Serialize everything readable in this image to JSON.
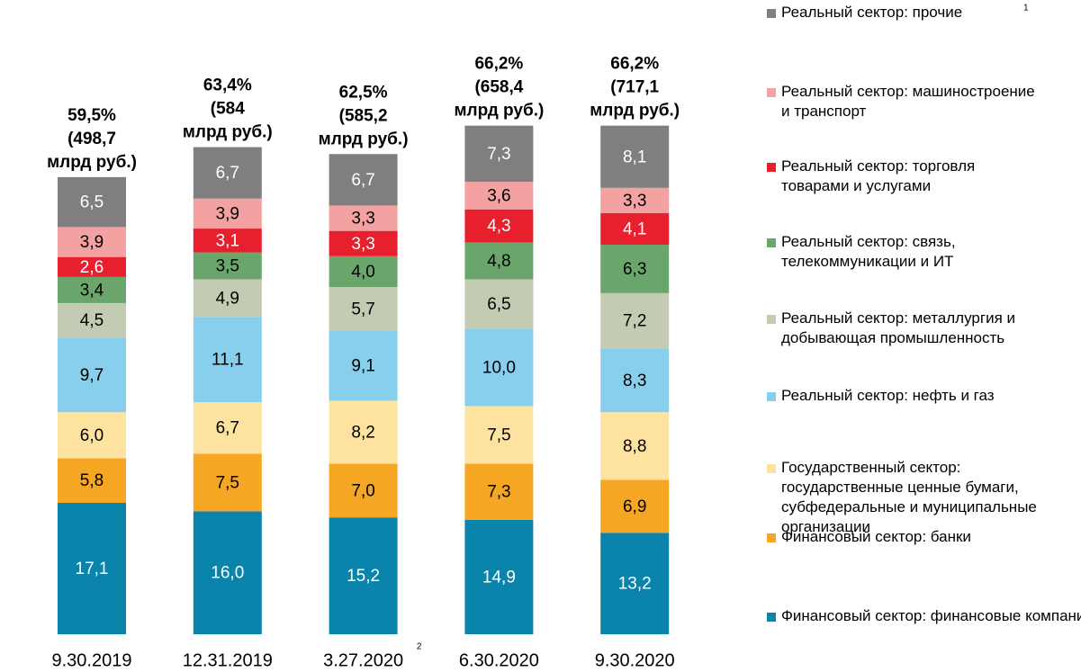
{
  "chart_data": {
    "type": "stacked_bar",
    "categories": [
      "9.30.2019",
      "12.31.2019",
      "3.27.2020",
      "6.30.2020",
      "9.30.2020"
    ],
    "category_footnotes": [
      null,
      null,
      "2",
      null,
      null
    ],
    "legend_footnote": "1",
    "total_labels": [
      [
        "59,5%",
        "(498,7",
        "млрд руб.)"
      ],
      [
        "63,4%",
        "(584",
        "млрд руб.)"
      ],
      [
        "62,5%",
        "(585,2",
        "млрд руб.)"
      ],
      [
        "66,2%",
        "(658,4",
        "млрд руб.)"
      ],
      [
        "66,2%",
        "(717,1",
        "млрд руб.)"
      ]
    ],
    "legend_position": "right",
    "series": [
      {
        "name": "Финансовый сектор: финансовые компании",
        "color": "#0b84ab",
        "label_color": "#ffffff",
        "values": [
          17.1,
          16.0,
          15.2,
          14.9,
          13.2
        ],
        "value_labels": [
          "17,1",
          "16,0",
          "15,2",
          "14,9",
          "13,2"
        ]
      },
      {
        "name": "Финансовый сектор: банки",
        "color": "#f5a623",
        "label_color": "#000000",
        "values": [
          5.8,
          7.5,
          7.0,
          7.3,
          6.9
        ],
        "value_labels": [
          "5,8",
          "7,5",
          "7,0",
          "7,3",
          "6,9"
        ]
      },
      {
        "name": "Государственный сектор: государственные ценные бумаги, субфедеральные и муниципальные организации",
        "color": "#fde2a0",
        "label_color": "#000000",
        "values": [
          6.0,
          6.7,
          8.2,
          7.5,
          8.8
        ],
        "value_labels": [
          "6,0",
          "6,7",
          "8,2",
          "7,5",
          "8,8"
        ]
      },
      {
        "name": "Реальный сектор: нефть и газ",
        "color": "#87cfec",
        "label_color": "#000000",
        "values": [
          9.7,
          11.1,
          9.1,
          10.0,
          8.3
        ],
        "value_labels": [
          "9,7",
          "11,1",
          "9,1",
          "10,0",
          "8,3"
        ]
      },
      {
        "name": "Реальный сектор: металлургия и добывающая промышленность",
        "color": "#c3ccb2",
        "label_color": "#000000",
        "values": [
          4.5,
          4.9,
          5.7,
          6.5,
          7.2
        ],
        "value_labels": [
          "4,5",
          "4,9",
          "5,7",
          "6,5",
          "7,2"
        ]
      },
      {
        "name": "Реальный сектор: связь, телекоммуникации и ИТ",
        "color": "#6aa66b",
        "label_color": "#000000",
        "values": [
          3.4,
          3.5,
          4.0,
          4.8,
          6.3
        ],
        "value_labels": [
          "3,4",
          "3,5",
          "4,0",
          "4,8",
          "6,3"
        ]
      },
      {
        "name": "Реальный сектор: торговля товарами и услугами",
        "color": "#e8202e",
        "label_color": "#ffffff",
        "values": [
          2.6,
          3.1,
          3.3,
          4.3,
          4.1
        ],
        "value_labels": [
          "2,6",
          "3,1",
          "3,3",
          "4,3",
          "4,1"
        ]
      },
      {
        "name": "Реальный сектор: машиностроение и транспорт",
        "color": "#f4a1a1",
        "label_color": "#000000",
        "values": [
          3.9,
          3.9,
          3.3,
          3.6,
          3.3
        ],
        "value_labels": [
          "3,9",
          "3,9",
          "3,3",
          "3,6",
          "3,3"
        ]
      },
      {
        "name": "Реальный сектор: прочие",
        "color": "#7f7f80",
        "label_color": "#ffffff",
        "values": [
          6.5,
          6.7,
          6.7,
          7.3,
          8.1
        ],
        "value_labels": [
          "6,5",
          "6,7",
          "6,7",
          "7,3",
          "8,1"
        ]
      }
    ]
  }
}
